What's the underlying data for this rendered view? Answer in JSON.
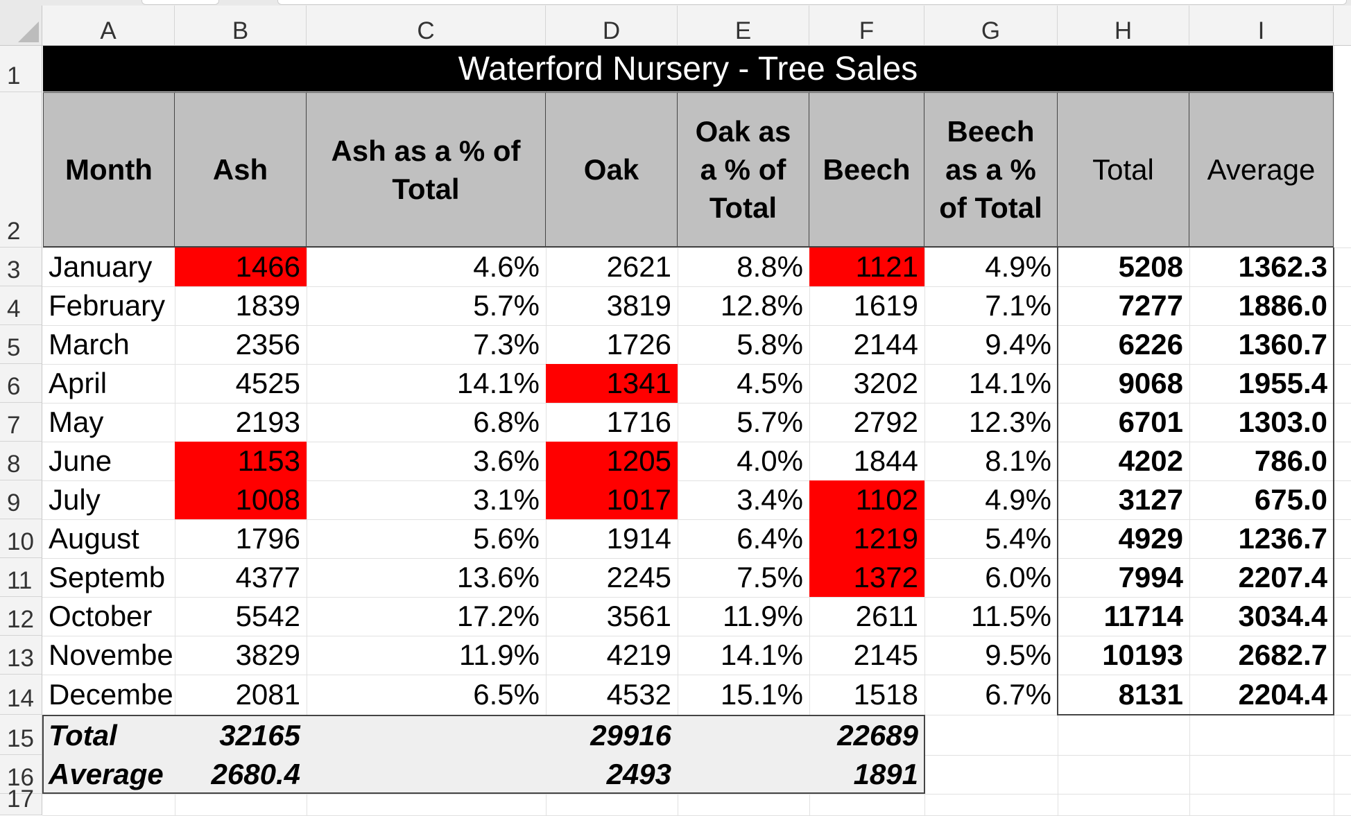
{
  "columns": [
    "A",
    "B",
    "C",
    "D",
    "E",
    "F",
    "G",
    "H",
    "I"
  ],
  "row_numbers": [
    "1",
    "2",
    "3",
    "4",
    "5",
    "6",
    "7",
    "8",
    "9",
    "10",
    "11",
    "12",
    "13",
    "14",
    "15",
    "16",
    "17"
  ],
  "title": "Waterford Nursery - Tree Sales",
  "headers": {
    "month": "Month",
    "ash": "Ash",
    "ash_pct": "Ash as a % of Total",
    "oak": "Oak",
    "oak_pct": "Oak as a % of Total",
    "beech": "Beech",
    "beech_pct": "Beech as a % of Total",
    "total": "Total",
    "average": "Average"
  },
  "rows": [
    {
      "month": "January",
      "ash": "1466",
      "ash_pct": "4.6%",
      "oak": "2621",
      "oak_pct": "8.8%",
      "beech": "1121",
      "beech_pct": "4.9%",
      "total": "5208",
      "average": "1362.3"
    },
    {
      "month": "February",
      "ash": "1839",
      "ash_pct": "5.7%",
      "oak": "3819",
      "oak_pct": "12.8%",
      "beech": "1619",
      "beech_pct": "7.1%",
      "total": "7277",
      "average": "1886.0"
    },
    {
      "month": "March",
      "ash": "2356",
      "ash_pct": "7.3%",
      "oak": "1726",
      "oak_pct": "5.8%",
      "beech": "2144",
      "beech_pct": "9.4%",
      "total": "6226",
      "average": "1360.7"
    },
    {
      "month": "April",
      "ash": "4525",
      "ash_pct": "14.1%",
      "oak": "1341",
      "oak_pct": "4.5%",
      "beech": "3202",
      "beech_pct": "14.1%",
      "total": "9068",
      "average": "1955.4"
    },
    {
      "month": "May",
      "ash": "2193",
      "ash_pct": "6.8%",
      "oak": "1716",
      "oak_pct": "5.7%",
      "beech": "2792",
      "beech_pct": "12.3%",
      "total": "6701",
      "average": "1303.0"
    },
    {
      "month": "June",
      "ash": "1153",
      "ash_pct": "3.6%",
      "oak": "1205",
      "oak_pct": "4.0%",
      "beech": "1844",
      "beech_pct": "8.1%",
      "total": "4202",
      "average": "786.0"
    },
    {
      "month": "July",
      "ash": "1008",
      "ash_pct": "3.1%",
      "oak": "1017",
      "oak_pct": "3.4%",
      "beech": "1102",
      "beech_pct": "4.9%",
      "total": "3127",
      "average": "675.0"
    },
    {
      "month": "August",
      "ash": "1796",
      "ash_pct": "5.6%",
      "oak": "1914",
      "oak_pct": "6.4%",
      "beech": "1219",
      "beech_pct": "5.4%",
      "total": "4929",
      "average": "1236.7"
    },
    {
      "month": "Septemb",
      "ash": "4377",
      "ash_pct": "13.6%",
      "oak": "2245",
      "oak_pct": "7.5%",
      "beech": "1372",
      "beech_pct": "6.0%",
      "total": "7994",
      "average": "2207.4"
    },
    {
      "month": "October",
      "ash": "5542",
      "ash_pct": "17.2%",
      "oak": "3561",
      "oak_pct": "11.9%",
      "beech": "2611",
      "beech_pct": "11.5%",
      "total": "11714",
      "average": "3034.4"
    },
    {
      "month": "Novembe",
      "ash": "3829",
      "ash_pct": "11.9%",
      "oak": "4219",
      "oak_pct": "14.1%",
      "beech": "2145",
      "beech_pct": "9.5%",
      "total": "10193",
      "average": "2682.7"
    },
    {
      "month": "Decembe",
      "ash": "2081",
      "ash_pct": "6.5%",
      "oak": "4532",
      "oak_pct": "15.1%",
      "beech": "1518",
      "beech_pct": "6.7%",
      "total": "8131",
      "average": "2204.4"
    }
  ],
  "highlight_color": "#ff0000",
  "highlighted": {
    "ash": [
      "January",
      "June",
      "July"
    ],
    "oak": [
      "April",
      "June",
      "July"
    ],
    "beech": [
      "January",
      "July",
      "August",
      "Septemb"
    ]
  },
  "summary": {
    "total_label": "Total",
    "total_ash": "32165",
    "total_oak": "29916",
    "total_beech": "22689",
    "average_label": "Average",
    "average_ash": "2680.4",
    "average_oak": "2493",
    "average_beech": "1891"
  }
}
